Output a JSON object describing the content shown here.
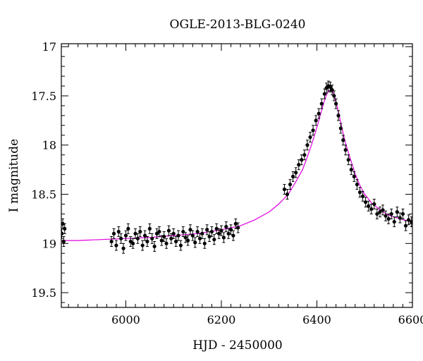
{
  "chart_data": {
    "type": "scatter",
    "title": "OGLE-2013-BLG-0240",
    "xlabel": "HJD - 2450000",
    "ylabel": "I magnitude",
    "xlim": [
      5865,
      6600
    ],
    "ylim": [
      19.65,
      16.97
    ],
    "y_inverted": true,
    "x_ticks": [
      6000,
      6200,
      6400,
      6600
    ],
    "x_tick_labels": [
      "6000",
      "6200",
      "6400",
      "6600"
    ],
    "y_ticks": [
      17,
      17.5,
      18,
      18.5,
      19,
      19.5
    ],
    "y_tick_labels": [
      "17",
      "17.5",
      "18",
      "18.5",
      "19",
      "19.5"
    ],
    "grid": false,
    "legend": "none",
    "colors": {
      "points": "#000000",
      "model": "#e000e0",
      "axes": "#000000"
    },
    "series": [
      {
        "kind": "points_with_errorbars",
        "x": [
          5866,
          5868,
          5870,
          5872,
          5970,
          5975,
          5980,
          5985,
          5990,
          5995,
          6000,
          6005,
          6010,
          6015,
          6020,
          6025,
          6030,
          6035,
          6040,
          6045,
          6050,
          6055,
          6060,
          6065,
          6070,
          6075,
          6080,
          6085,
          6090,
          6095,
          6100,
          6105,
          6110,
          6115,
          6120,
          6125,
          6130,
          6135,
          6140,
          6145,
          6150,
          6155,
          6160,
          6165,
          6170,
          6175,
          6180,
          6185,
          6190,
          6195,
          6200,
          6205,
          6210,
          6215,
          6220,
          6225,
          6230,
          6235,
          6332,
          6338,
          6344,
          6350,
          6356,
          6362,
          6368,
          6374,
          6380,
          6386,
          6392,
          6398,
          6404,
          6410,
          6416,
          6420,
          6424,
          6428,
          6432,
          6436,
          6440,
          6445,
          6450,
          6455,
          6460,
          6466,
          6472,
          6478,
          6484,
          6490,
          6496,
          6502,
          6508,
          6514,
          6520,
          6526,
          6532,
          6538,
          6544,
          6550,
          6556,
          6562,
          6568,
          6574,
          6580,
          6586,
          6592,
          6598
        ],
        "y": [
          18.9,
          18.8,
          18.98,
          18.85,
          18.98,
          18.9,
          19.02,
          18.88,
          18.95,
          19.05,
          18.92,
          18.85,
          18.98,
          19.0,
          18.9,
          18.95,
          18.88,
          19.02,
          18.92,
          18.98,
          18.85,
          18.95,
          19.03,
          18.9,
          18.88,
          18.97,
          18.93,
          19.0,
          18.87,
          18.95,
          18.9,
          18.98,
          18.92,
          19.02,
          18.88,
          18.94,
          18.97,
          18.86,
          18.92,
          18.99,
          18.88,
          18.95,
          18.9,
          19.0,
          18.86,
          18.93,
          18.88,
          18.96,
          18.85,
          18.9,
          18.87,
          18.94,
          18.83,
          18.9,
          18.86,
          18.92,
          18.8,
          18.84,
          18.45,
          18.5,
          18.4,
          18.32,
          18.28,
          18.2,
          18.15,
          18.1,
          18.0,
          17.92,
          17.85,
          17.75,
          17.68,
          17.58,
          17.48,
          17.42,
          17.4,
          17.41,
          17.44,
          17.5,
          17.58,
          17.7,
          17.83,
          17.95,
          18.05,
          18.15,
          18.25,
          18.32,
          18.4,
          18.48,
          18.52,
          18.58,
          18.62,
          18.65,
          18.6,
          18.7,
          18.68,
          18.66,
          18.72,
          18.75,
          18.7,
          18.78,
          18.68,
          18.74,
          18.7,
          18.82,
          18.76,
          18.78
        ]
      },
      {
        "kind": "model_curve",
        "x": [
          5865,
          5900,
          5950,
          6000,
          6050,
          6100,
          6150,
          6200,
          6240,
          6270,
          6300,
          6320,
          6340,
          6355,
          6370,
          6380,
          6390,
          6400,
          6408,
          6415,
          6420,
          6425,
          6428,
          6432,
          6436,
          6440,
          6446,
          6452,
          6460,
          6470,
          6480,
          6490,
          6500,
          6515,
          6530,
          6545,
          6560,
          6575,
          6590,
          6600
        ],
        "y": [
          18.97,
          18.97,
          18.96,
          18.95,
          18.94,
          18.92,
          18.9,
          18.86,
          18.82,
          18.76,
          18.68,
          18.6,
          18.5,
          18.38,
          18.25,
          18.12,
          17.98,
          17.82,
          17.68,
          17.56,
          17.49,
          17.45,
          17.44,
          17.45,
          17.49,
          17.56,
          17.68,
          17.82,
          17.98,
          18.14,
          18.29,
          18.41,
          18.5,
          18.59,
          18.65,
          18.7,
          18.73,
          18.75,
          18.77,
          18.79
        ]
      }
    ]
  }
}
